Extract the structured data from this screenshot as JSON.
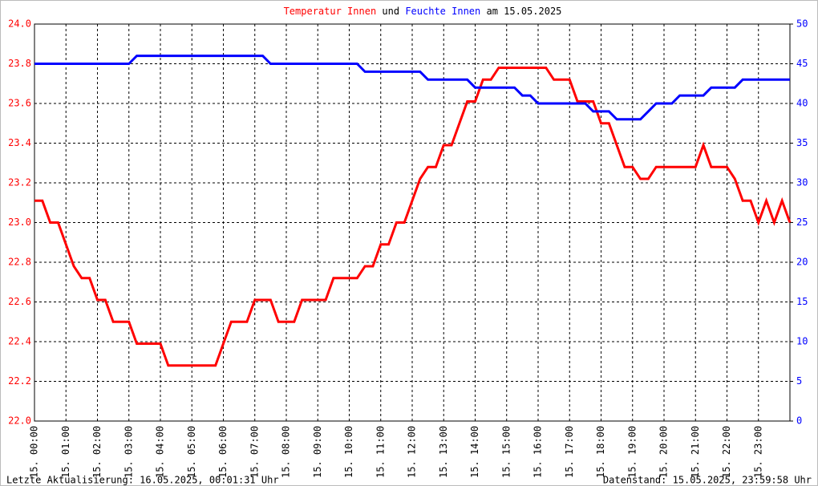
{
  "chart_data": {
    "type": "line",
    "title_connector": "und",
    "title_suffix": "am 15.05.2025",
    "footer_left": "Letzte Aktualisierung: 16.05.2025, 00:01:31 Uhr",
    "footer_right": "Datenstand: 15.05.2025, 23:59:58 Uhr",
    "grid": true,
    "xlim": [
      0,
      24
    ],
    "xticks": [
      {
        "value": 0,
        "label": "15. 00:00"
      },
      {
        "value": 1,
        "label": "15. 01:00"
      },
      {
        "value": 2,
        "label": "15. 02:00"
      },
      {
        "value": 3,
        "label": "15. 03:00"
      },
      {
        "value": 4,
        "label": "15. 04:00"
      },
      {
        "value": 5,
        "label": "15. 05:00"
      },
      {
        "value": 6,
        "label": "15. 06:00"
      },
      {
        "value": 7,
        "label": "15. 07:00"
      },
      {
        "value": 8,
        "label": "15. 08:00"
      },
      {
        "value": 9,
        "label": "15. 09:00"
      },
      {
        "value": 10,
        "label": "15. 10:00"
      },
      {
        "value": 11,
        "label": "15. 11:00"
      },
      {
        "value": 12,
        "label": "15. 12:00"
      },
      {
        "value": 13,
        "label": "15. 13:00"
      },
      {
        "value": 14,
        "label": "15. 14:00"
      },
      {
        "value": 15,
        "label": "15. 15:00"
      },
      {
        "value": 16,
        "label": "15. 16:00"
      },
      {
        "value": 17,
        "label": "15. 17:00"
      },
      {
        "value": 18,
        "label": "15. 18:00"
      },
      {
        "value": 19,
        "label": "15. 19:00"
      },
      {
        "value": 20,
        "label": "15. 20:00"
      },
      {
        "value": 21,
        "label": "15. 21:00"
      },
      {
        "value": 22,
        "label": "15. 22:00"
      },
      {
        "value": 23,
        "label": "15. 23:00"
      }
    ],
    "ylim": [
      22.0,
      24.0
    ],
    "yticks": [
      {
        "value": 22,
        "label": "22.0"
      },
      22.2,
      22.4,
      22.6,
      22.8,
      {
        "value": 23,
        "label": "23.0"
      },
      23.2,
      23.4,
      23.6,
      23.8,
      {
        "value": 24,
        "label": "24.0"
      }
    ],
    "y2lim": [
      0,
      50
    ],
    "y2ticks": [
      0,
      5,
      10,
      15,
      20,
      25,
      30,
      35,
      40,
      45,
      50
    ],
    "x": [
      0,
      0.25,
      0.5,
      0.75,
      1,
      1.25,
      1.5,
      1.75,
      2,
      2.25,
      2.5,
      2.75,
      3,
      3.25,
      3.5,
      3.75,
      4,
      4.25,
      4.5,
      4.75,
      5,
      5.25,
      5.5,
      5.75,
      6,
      6.25,
      6.5,
      6.75,
      7,
      7.25,
      7.5,
      7.75,
      8,
      8.25,
      8.5,
      8.75,
      9,
      9.25,
      9.5,
      9.75,
      10,
      10.25,
      10.5,
      10.75,
      11,
      11.25,
      11.5,
      11.75,
      12,
      12.25,
      12.5,
      12.75,
      13,
      13.25,
      13.5,
      13.75,
      14,
      14.25,
      14.5,
      14.75,
      15,
      15.25,
      15.5,
      15.75,
      16,
      16.25,
      16.5,
      16.75,
      17,
      17.25,
      17.5,
      17.75,
      18,
      18.25,
      18.5,
      18.75,
      19,
      19.25,
      19.5,
      19.75,
      20,
      20.25,
      20.5,
      20.75,
      21,
      21.25,
      21.5,
      21.75,
      22,
      22.25,
      22.5,
      22.75,
      23,
      23.25,
      23.5,
      23.75,
      24
    ],
    "series": [
      {
        "name": "Temperatur Innen",
        "color": "#ff0000",
        "axis": "y",
        "values": [
          23.11,
          23.11,
          23.0,
          23.0,
          22.89,
          22.78,
          22.72,
          22.72,
          22.61,
          22.61,
          22.5,
          22.5,
          22.5,
          22.39,
          22.39,
          22.39,
          22.39,
          22.28,
          22.28,
          22.28,
          22.28,
          22.28,
          22.28,
          22.28,
          22.39,
          22.5,
          22.5,
          22.5,
          22.61,
          22.61,
          22.61,
          22.5,
          22.5,
          22.5,
          22.61,
          22.61,
          22.61,
          22.61,
          22.72,
          22.72,
          22.72,
          22.72,
          22.78,
          22.78,
          22.89,
          22.89,
          23.0,
          23.0,
          23.11,
          23.22,
          23.28,
          23.28,
          23.39,
          23.39,
          23.5,
          23.61,
          23.61,
          23.72,
          23.72,
          23.78,
          23.78,
          23.78,
          23.78,
          23.78,
          23.78,
          23.78,
          23.72,
          23.72,
          23.72,
          23.61,
          23.61,
          23.61,
          23.5,
          23.5,
          23.39,
          23.28,
          23.28,
          23.22,
          23.22,
          23.28,
          23.28,
          23.28,
          23.28,
          23.28,
          23.28,
          23.39,
          23.28,
          23.28,
          23.28,
          23.22,
          23.11,
          23.11,
          23.0,
          23.11,
          23.0,
          23.11,
          23.0
        ]
      },
      {
        "name": "Feuchte Innen",
        "color": "#0000ff",
        "axis": "y2",
        "values": [
          45,
          45,
          45,
          45,
          45,
          45,
          45,
          45,
          45,
          45,
          45,
          45,
          45,
          46,
          46,
          46,
          46,
          46,
          46,
          46,
          46,
          46,
          46,
          46,
          46,
          46,
          46,
          46,
          46,
          46,
          45,
          45,
          45,
          45,
          45,
          45,
          45,
          45,
          45,
          45,
          45,
          45,
          44,
          44,
          44,
          44,
          44,
          44,
          44,
          44,
          43,
          43,
          43,
          43,
          43,
          43,
          42,
          42,
          42,
          42,
          42,
          42,
          41,
          41,
          40,
          40,
          40,
          40,
          40,
          40,
          40,
          39,
          39,
          39,
          38,
          38,
          38,
          38,
          39,
          40,
          40,
          40,
          41,
          41,
          41,
          41,
          42,
          42,
          42,
          42,
          43,
          43,
          43,
          43,
          43,
          43,
          43
        ]
      }
    ]
  }
}
